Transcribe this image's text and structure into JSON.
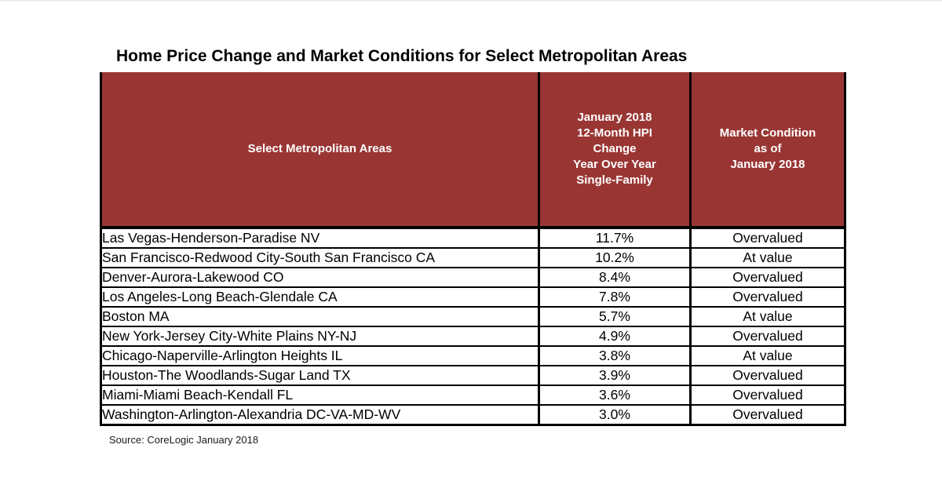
{
  "colors": {
    "header_bg": "#993634",
    "header_text": "#ffffff",
    "border": "#000000",
    "row_bg": "#ffffff",
    "body_text": "#000000"
  },
  "chart_data": {
    "type": "table",
    "title": "Home Price Change and Market Conditions for Select Metropolitan Areas",
    "source": "Source: CoreLogic January 2018",
    "columns": [
      {
        "name": "Select Metropolitan Areas",
        "label_lines": [
          "Select Metropolitan Areas"
        ]
      },
      {
        "name": "January 2018 12-Month HPI Change Year Over Year Single-Family",
        "label_lines": [
          "January 2018",
          "12-Month HPI",
          "Change",
          "Year Over Year",
          "Single-Family"
        ]
      },
      {
        "name": "Market Condition as of January 2018",
        "label_lines": [
          "Market Condition",
          "as of",
          "January 2018"
        ]
      }
    ],
    "rows": [
      {
        "metro": "Las Vegas-Henderson-Paradise NV",
        "hpi_change": "11.7%",
        "condition": "Overvalued"
      },
      {
        "metro": "San Francisco-Redwood City-South San Francisco CA",
        "hpi_change": "10.2%",
        "condition": "At value"
      },
      {
        "metro": "Denver-Aurora-Lakewood CO",
        "hpi_change": "8.4%",
        "condition": "Overvalued"
      },
      {
        "metro": "Los Angeles-Long Beach-Glendale CA",
        "hpi_change": "7.8%",
        "condition": "Overvalued"
      },
      {
        "metro": "Boston MA",
        "hpi_change": "5.7%",
        "condition": "At value"
      },
      {
        "metro": "New York-Jersey City-White Plains NY-NJ",
        "hpi_change": "4.9%",
        "condition": "Overvalued"
      },
      {
        "metro": "Chicago-Naperville-Arlington Heights IL",
        "hpi_change": "3.8%",
        "condition": "At value"
      },
      {
        "metro": "Houston-The Woodlands-Sugar Land TX",
        "hpi_change": "3.9%",
        "condition": "Overvalued"
      },
      {
        "metro": "Miami-Miami Beach-Kendall FL",
        "hpi_change": "3.6%",
        "condition": "Overvalued"
      },
      {
        "metro": "Washington-Arlington-Alexandria DC-VA-MD-WV",
        "hpi_change": "3.0%",
        "condition": "Overvalued"
      }
    ]
  }
}
